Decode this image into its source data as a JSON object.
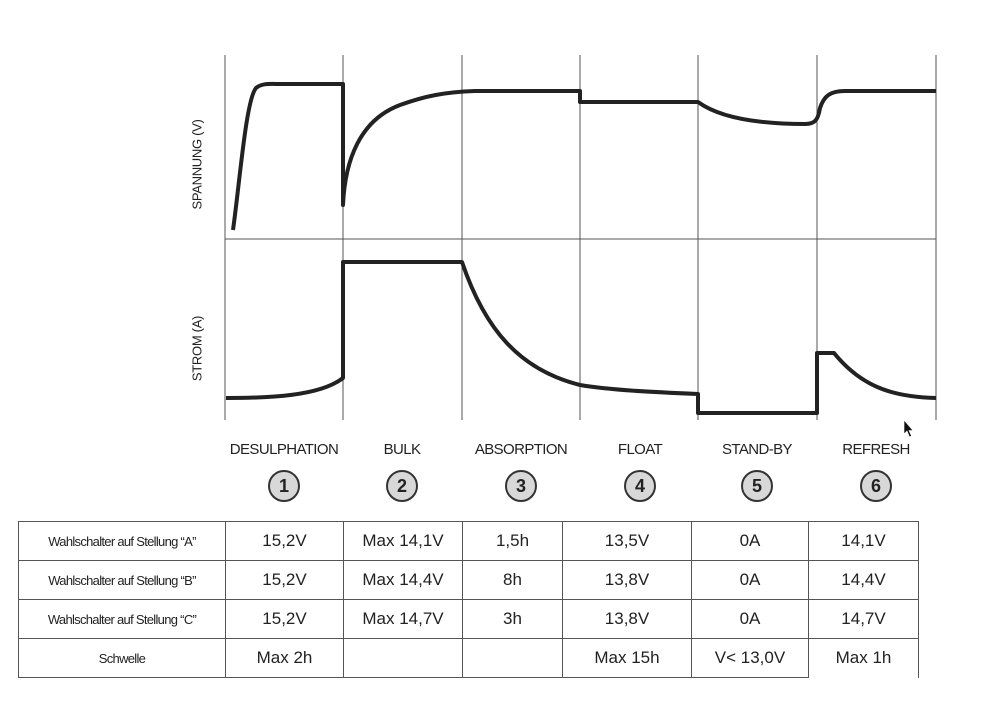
{
  "axes": {
    "voltage_label": "SPANNUNG (V)",
    "current_label": "STROM (A)"
  },
  "phases": [
    {
      "name": "DESULPHATION",
      "number": "1"
    },
    {
      "name": "BULK",
      "number": "2"
    },
    {
      "name": "ABSORPTION",
      "number": "3"
    },
    {
      "name": "FLOAT",
      "number": "4"
    },
    {
      "name": "STAND-BY",
      "number": "5"
    },
    {
      "name": "REFRESH",
      "number": "6"
    }
  ],
  "table": {
    "rows": [
      {
        "label": "Wahlschalter auf Stellung “A”",
        "cells": [
          "15,2V",
          "Max 14,1V",
          "1,5h",
          "13,5V",
          "0A",
          "14,1V"
        ]
      },
      {
        "label": "Wahlschalter auf Stellung “B”",
        "cells": [
          "15,2V",
          "Max 14,4V",
          "8h",
          "13,8V",
          "0A",
          "14,4V"
        ]
      },
      {
        "label": "Wahlschalter auf Stellung “C”",
        "cells": [
          "15,2V",
          "Max 14,7V",
          "3h",
          "13,8V",
          "0A",
          "14,7V"
        ]
      },
      {
        "label": "Schwelle",
        "cells": [
          "Max 2h",
          "",
          "",
          "Max 15h",
          "V< 13,0V",
          "Max 1h"
        ]
      }
    ]
  },
  "colors": {
    "curve": "#222222",
    "grid": "#555555",
    "badge_fill": "#d8d8d8"
  }
}
